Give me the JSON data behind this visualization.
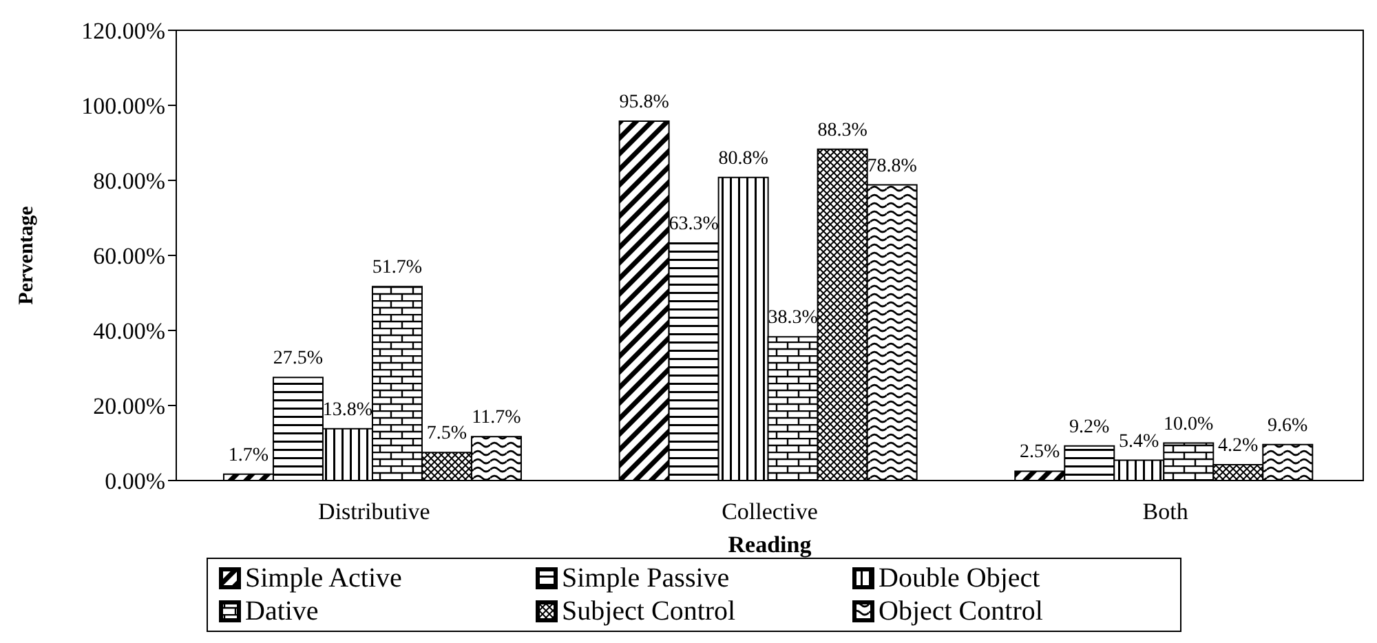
{
  "chart_data": {
    "type": "bar",
    "xlabel": "Reading",
    "ylabel": "Perventage",
    "categories": [
      "Distributive",
      "Collective",
      "Both"
    ],
    "series": [
      {
        "name": "Simple Active",
        "color": "#000000",
        "values": [
          1.7,
          95.8,
          2.5
        ],
        "value_labels": [
          "1.7%",
          "95.8%",
          "2.5%"
        ]
      },
      {
        "name": "Simple Passive",
        "color": "#000000",
        "values": [
          27.5,
          63.3,
          9.2
        ],
        "value_labels": [
          "27.5%",
          "63.3%",
          "9.2%"
        ]
      },
      {
        "name": "Double Object",
        "color": "#000000",
        "values": [
          13.8,
          80.8,
          5.4
        ],
        "value_labels": [
          "13.8%",
          "80.8%",
          "5.4%"
        ]
      },
      {
        "name": "Dative",
        "color": "#000000",
        "values": [
          51.7,
          38.3,
          10.0
        ],
        "value_labels": [
          "51.7%",
          "38.3%",
          "10.0%"
        ]
      },
      {
        "name": "Subject Control",
        "color": "#000000",
        "values": [
          7.5,
          88.3,
          4.2
        ],
        "value_labels": [
          "7.5%",
          "88.3%",
          "4.2%"
        ]
      },
      {
        "name": "Object Control",
        "color": "#000000",
        "values": [
          11.7,
          78.8,
          9.6
        ],
        "value_labels": [
          "11.7%",
          "78.8%",
          "9.6%"
        ]
      }
    ],
    "ylim": [
      0,
      120
    ],
    "yticks": [
      {
        "value": 0,
        "label": "0.00%"
      },
      {
        "value": 20,
        "label": "20.00%"
      },
      {
        "value": 40,
        "label": "40.00%"
      },
      {
        "value": 60,
        "label": "60.00%"
      },
      {
        "value": 80,
        "label": "80.00%"
      },
      {
        "value": 100,
        "label": "100.00%"
      },
      {
        "value": 120,
        "label": "120.00%"
      }
    ],
    "grid": false,
    "legend": "bottom"
  }
}
